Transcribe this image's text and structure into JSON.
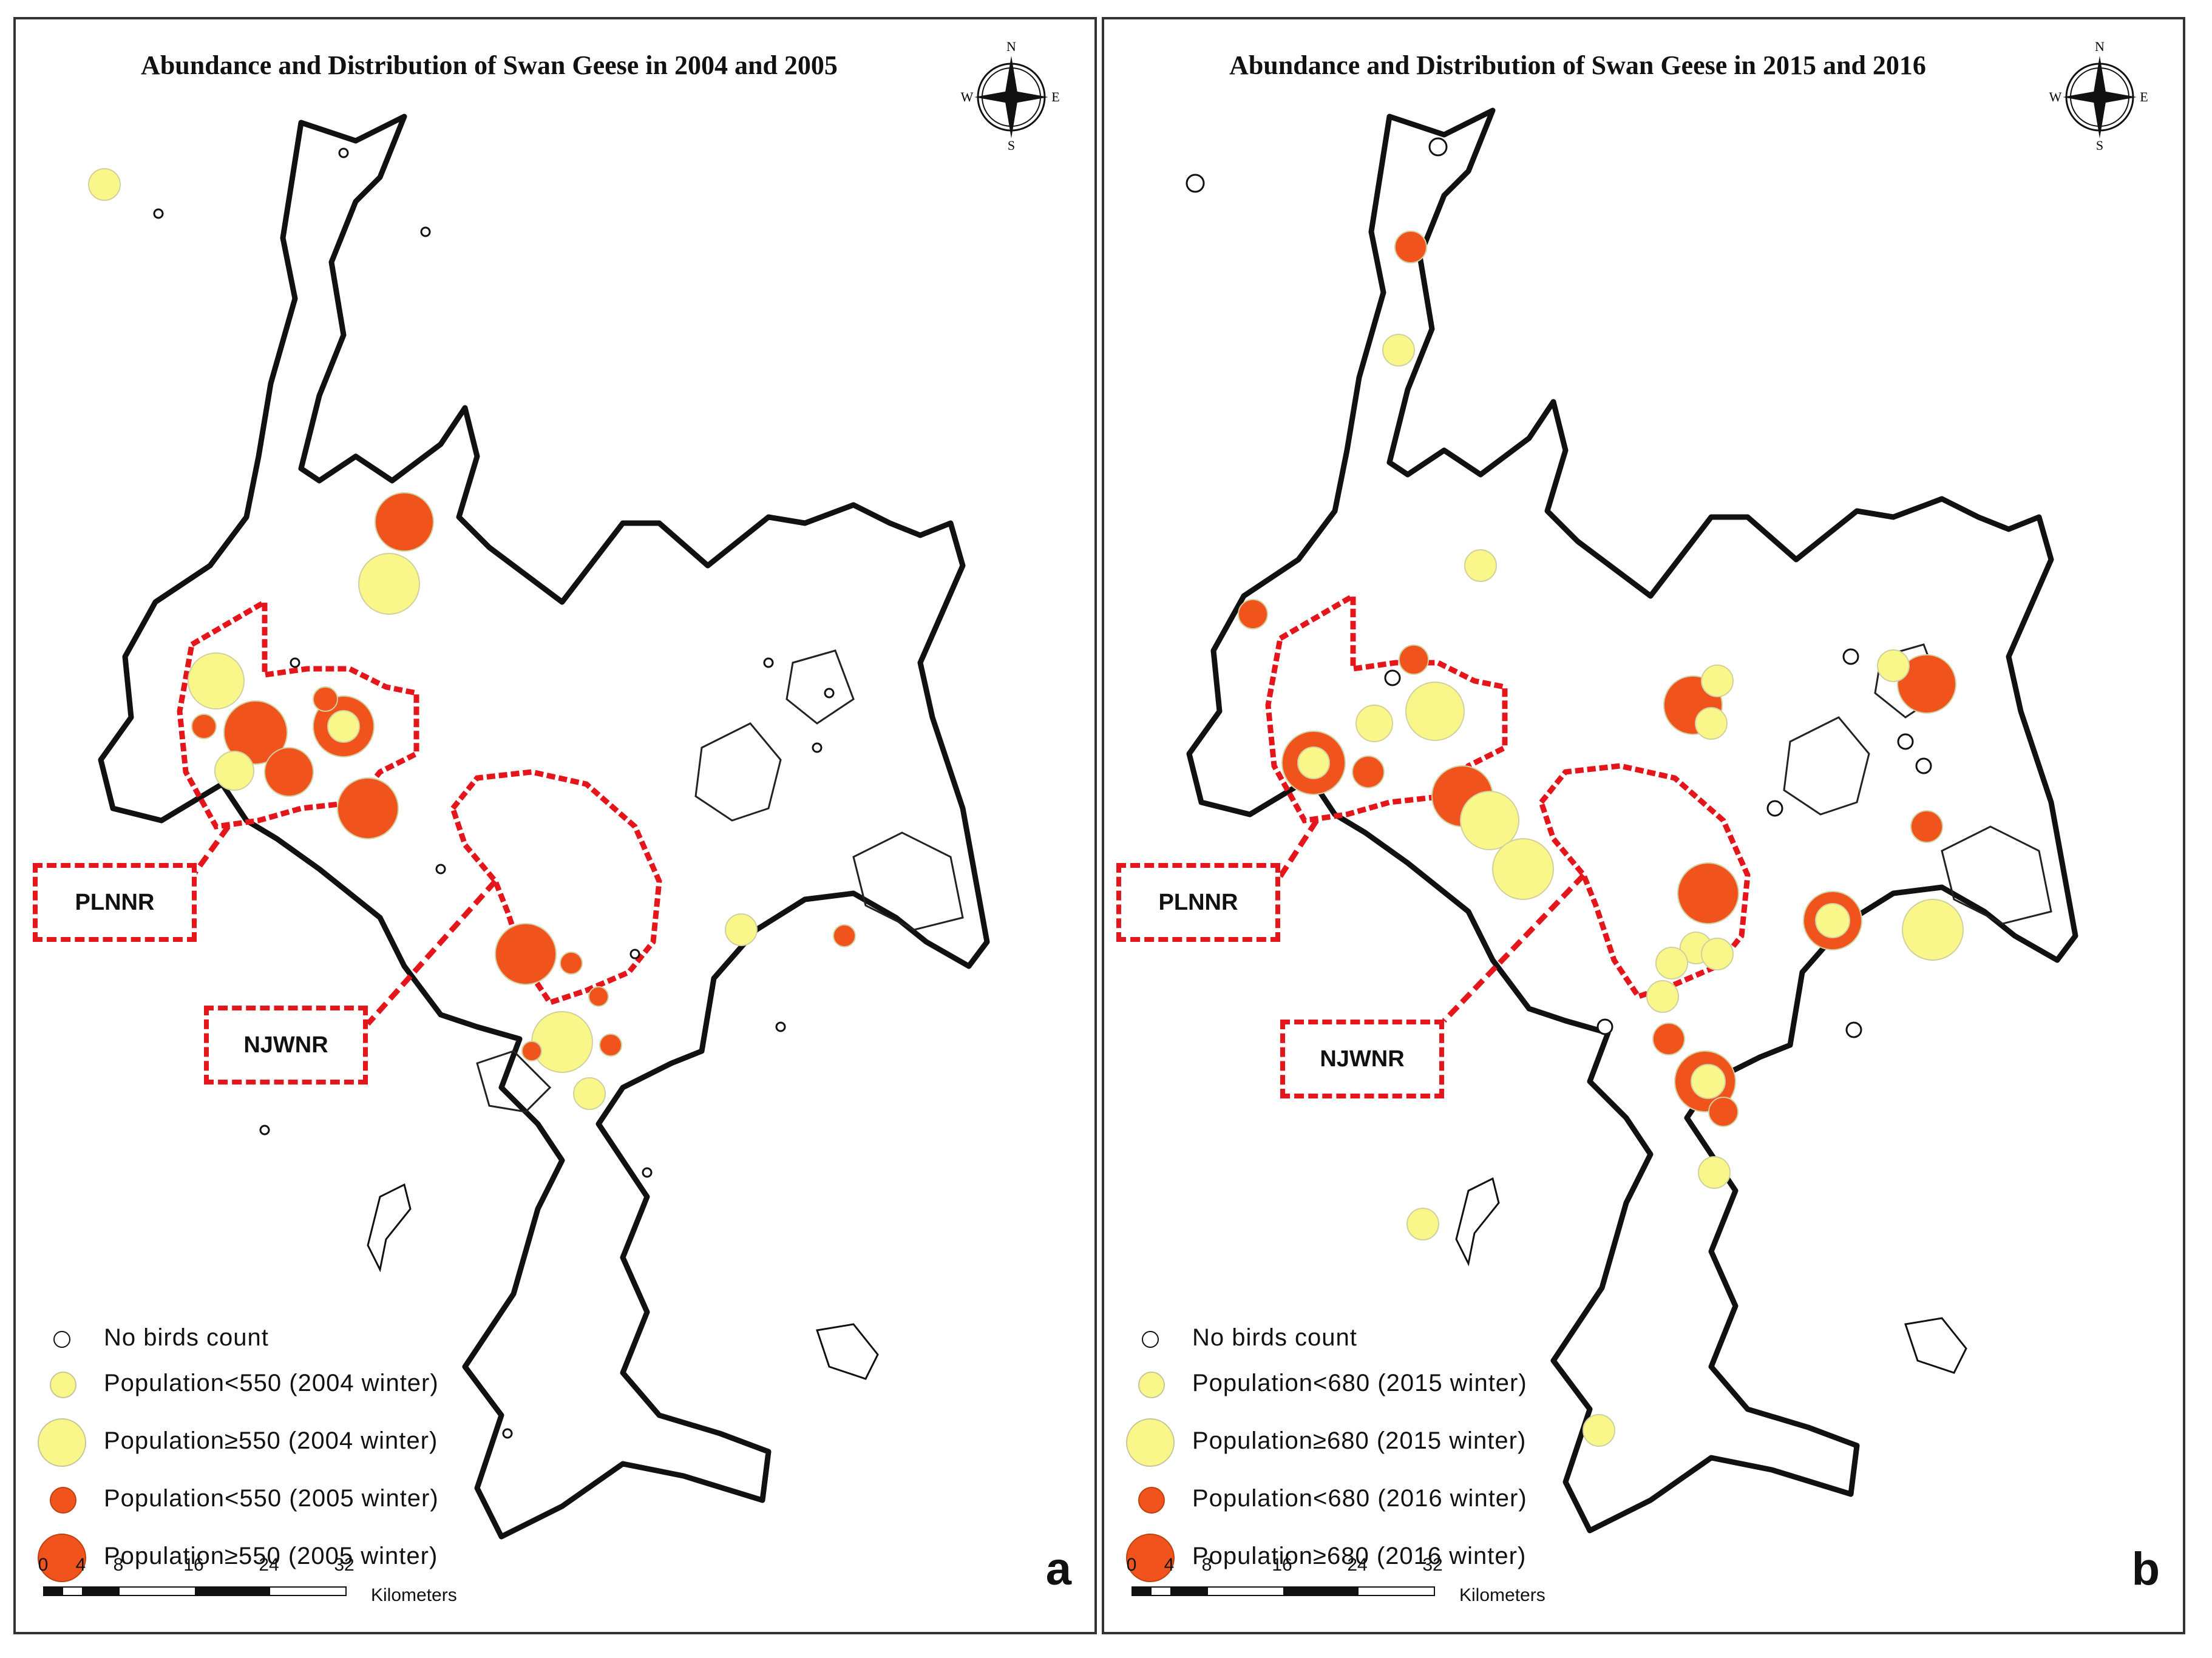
{
  "panels": [
    {
      "id": "a",
      "title": "Abundance and Distribution of Swan Geese in 2004 and 2005",
      "panel_letter": "a",
      "reserve_labels": [
        "PLNNR",
        "NJWNR"
      ],
      "legend": [
        {
          "label": "No birds count",
          "symbol": "empty-circle",
          "color": "#ffffff"
        },
        {
          "label": "Population<550 (2004 winter)",
          "symbol": "small-yellow",
          "color": "#faf78a"
        },
        {
          "label": "Population≥550 (2004 winter)",
          "symbol": "large-yellow",
          "color": "#faf78a"
        },
        {
          "label": "Population<550 (2005 winter)",
          "symbol": "small-orange",
          "color": "#f0541c"
        },
        {
          "label": "Population≥550 (2005 winter)",
          "symbol": "large-orange",
          "color": "#f0541c"
        }
      ]
    },
    {
      "id": "b",
      "title": "Abundance and Distribution of Swan Geese in 2015 and 2016",
      "panel_letter": "b",
      "reserve_labels": [
        "PLNNR",
        "NJWNR"
      ],
      "legend": [
        {
          "label": "No birds count",
          "symbol": "empty-circle",
          "color": "#ffffff"
        },
        {
          "label": "Population<680 (2015 winter)",
          "symbol": "small-yellow",
          "color": "#faf78a"
        },
        {
          "label": "Population≥680 (2015 winter)",
          "symbol": "large-yellow",
          "color": "#faf78a"
        },
        {
          "label": "Population<680 (2016 winter)",
          "symbol": "small-orange",
          "color": "#f0541c"
        },
        {
          "label": "Population≥680 (2016 winter)",
          "symbol": "large-orange",
          "color": "#f0541c"
        }
      ]
    }
  ],
  "compass": {
    "n": "N",
    "s": "S",
    "e": "E",
    "w": "W"
  },
  "scale": {
    "ticks": [
      "0",
      "4",
      "8",
      "16",
      "24",
      "32"
    ],
    "unit": "Kilometers"
  },
  "colors": {
    "yellow": "#faf78a",
    "orange": "#f0541c",
    "reserve_boundary": "#e4161b",
    "lake_outline": "#111111"
  }
}
